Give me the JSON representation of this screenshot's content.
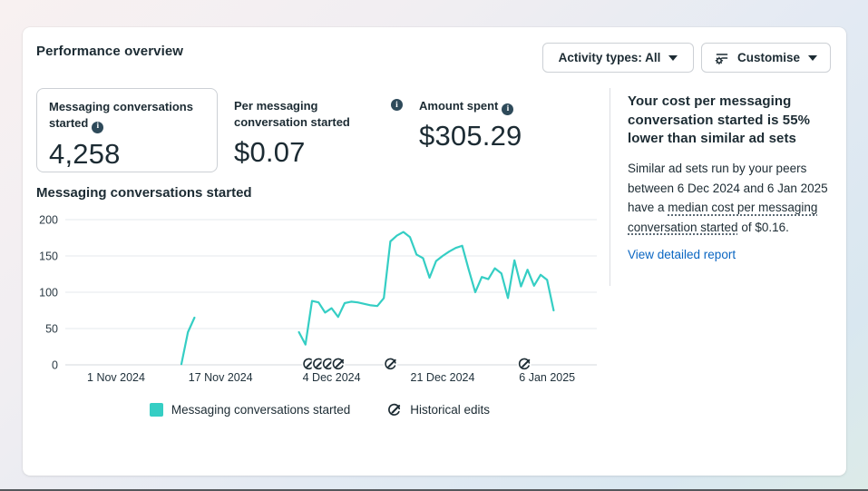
{
  "header": {
    "title": "Performance overview",
    "activity_button_label": "Activity types: All",
    "customise_button_label": "Customise"
  },
  "metrics": [
    {
      "label": "Messaging conversations started",
      "value": "4,258",
      "selected": true
    },
    {
      "label": "Per messaging conversation started",
      "value": "$0.07",
      "selected": false
    },
    {
      "label": "Amount spent",
      "value": "$305.29",
      "selected": false
    }
  ],
  "insight": {
    "heading": "Your cost per messaging conversation started is 55% lower than similar ad sets",
    "body_prefix": "Similar ad sets run by your peers between 6 Dec 2024 and 6 Jan 2025 have a ",
    "body_underlined": "median cost per messaging conversation started",
    "body_suffix": " of $0.16.",
    "link_label": "View detailed report"
  },
  "chart_section": {
    "title": "Messaging conversations started"
  },
  "legend": [
    {
      "label": "Messaging conversations started"
    },
    {
      "label": "Historical edits"
    }
  ],
  "colors": {
    "series_teal": "#35cec4",
    "text_dark": "#1c2b33",
    "link_blue": "#0a66c2",
    "gridline": "#e6e8ec",
    "axis_line": "#d6d9dd"
  },
  "chart_data": {
    "type": "line",
    "title": "Messaging conversations started",
    "series_name": "Messaging conversations started",
    "x_unit": "days since 1 Nov 2024",
    "ylim": [
      0,
      200
    ],
    "yticks": [
      0,
      50,
      100,
      150,
      200
    ],
    "xticks": [
      {
        "label": "1 Nov 2024",
        "day": 0
      },
      {
        "label": "17 Nov 2024",
        "day": 16
      },
      {
        "label": "4 Dec 2024",
        "day": 33
      },
      {
        "label": "21 Dec 2024",
        "day": 50
      },
      {
        "label": "6 Jan 2025",
        "day": 66
      }
    ],
    "grid": true,
    "legend_position": "bottom",
    "segments": [
      {
        "points": [
          [
            10,
            1
          ],
          [
            11,
            45
          ],
          [
            12,
            65
          ]
        ]
      },
      {
        "points": [
          [
            28,
            45
          ],
          [
            29,
            28
          ],
          [
            30,
            88
          ],
          [
            31,
            86
          ],
          [
            32,
            72
          ],
          [
            33,
            78
          ],
          [
            34,
            66
          ],
          [
            35,
            85
          ],
          [
            36,
            87
          ],
          [
            37,
            86
          ],
          [
            38,
            84
          ],
          [
            39,
            82
          ],
          [
            40,
            81
          ],
          [
            41,
            92
          ],
          [
            42,
            170
          ],
          [
            43,
            178
          ],
          [
            44,
            183
          ],
          [
            45,
            176
          ],
          [
            46,
            152
          ],
          [
            47,
            147
          ],
          [
            48,
            120
          ],
          [
            49,
            143
          ],
          [
            50,
            150
          ],
          [
            51,
            156
          ],
          [
            52,
            161
          ],
          [
            53,
            164
          ],
          [
            54,
            131
          ],
          [
            55,
            100
          ],
          [
            56,
            121
          ],
          [
            57,
            118
          ],
          [
            58,
            133
          ],
          [
            59,
            126
          ],
          [
            60,
            92
          ],
          [
            61,
            144
          ],
          [
            62,
            108
          ],
          [
            63,
            131
          ],
          [
            64,
            109
          ],
          [
            65,
            124
          ],
          [
            66,
            117
          ],
          [
            67,
            75
          ]
        ]
      }
    ],
    "historical_edits": [
      {
        "date": "30 Nov 2024",
        "day": 29.5
      },
      {
        "date": "2 Dec 2024",
        "day": 31
      },
      {
        "date": "3 Dec 2024",
        "day": 32.5
      },
      {
        "date": "5 Dec 2024",
        "day": 34
      },
      {
        "date": "13 Dec 2024",
        "day": 42
      },
      {
        "date": "2 Jan 2025",
        "day": 62.5
      }
    ]
  }
}
